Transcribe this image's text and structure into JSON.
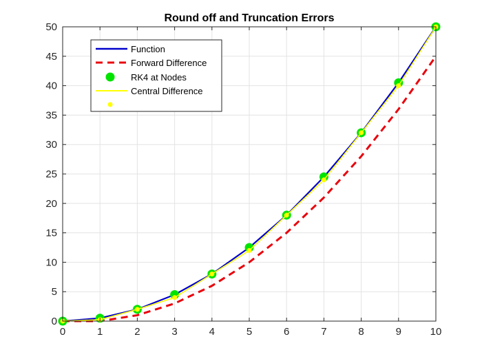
{
  "chart_data": {
    "type": "line",
    "title": "Round off and Truncation Errors",
    "xlabel": "",
    "ylabel": "",
    "xlim": [
      0,
      10
    ],
    "ylim": [
      0,
      50
    ],
    "xticks": [
      "0",
      "1",
      "2",
      "3",
      "4",
      "5",
      "6",
      "7",
      "8",
      "9",
      "10"
    ],
    "yticks": [
      "0",
      "5",
      "10",
      "15",
      "20",
      "25",
      "30",
      "35",
      "40",
      "45",
      "50"
    ],
    "grid": true,
    "legend_position": "top-left",
    "series": [
      {
        "name": "Function",
        "style": "solid-line",
        "color": "#0000cc",
        "x": [
          0,
          1,
          2,
          3,
          4,
          5,
          6,
          7,
          8,
          9,
          10
        ],
        "values": [
          0,
          0.5,
          2,
          4.5,
          8,
          12.5,
          18,
          24.5,
          32,
          40.5,
          50
        ]
      },
      {
        "name": "Forward Difference",
        "style": "dashed-line",
        "color": "#e8000b",
        "x": [
          0,
          1,
          2,
          3,
          4,
          5,
          6,
          7,
          8,
          9,
          10
        ],
        "values": [
          0,
          0,
          1,
          3,
          6,
          10,
          15,
          21,
          28,
          36,
          45
        ]
      },
      {
        "name": "RK4 at Nodes",
        "style": "markers",
        "color": "#00e400",
        "x": [
          0,
          1,
          2,
          3,
          4,
          5,
          6,
          7,
          8,
          9,
          10
        ],
        "values": [
          0,
          0.5,
          2,
          4.5,
          8,
          12.5,
          18,
          24.5,
          32,
          40.5,
          50
        ]
      },
      {
        "name": "Central Difference",
        "style": "solid-line-with-markers",
        "color": "#ffff00",
        "x": [
          0,
          1,
          2,
          3,
          4,
          5,
          6,
          7,
          8,
          9,
          10
        ],
        "values": [
          0,
          0.25,
          2,
          4,
          8,
          12,
          18,
          24,
          32,
          40,
          50
        ]
      }
    ]
  }
}
